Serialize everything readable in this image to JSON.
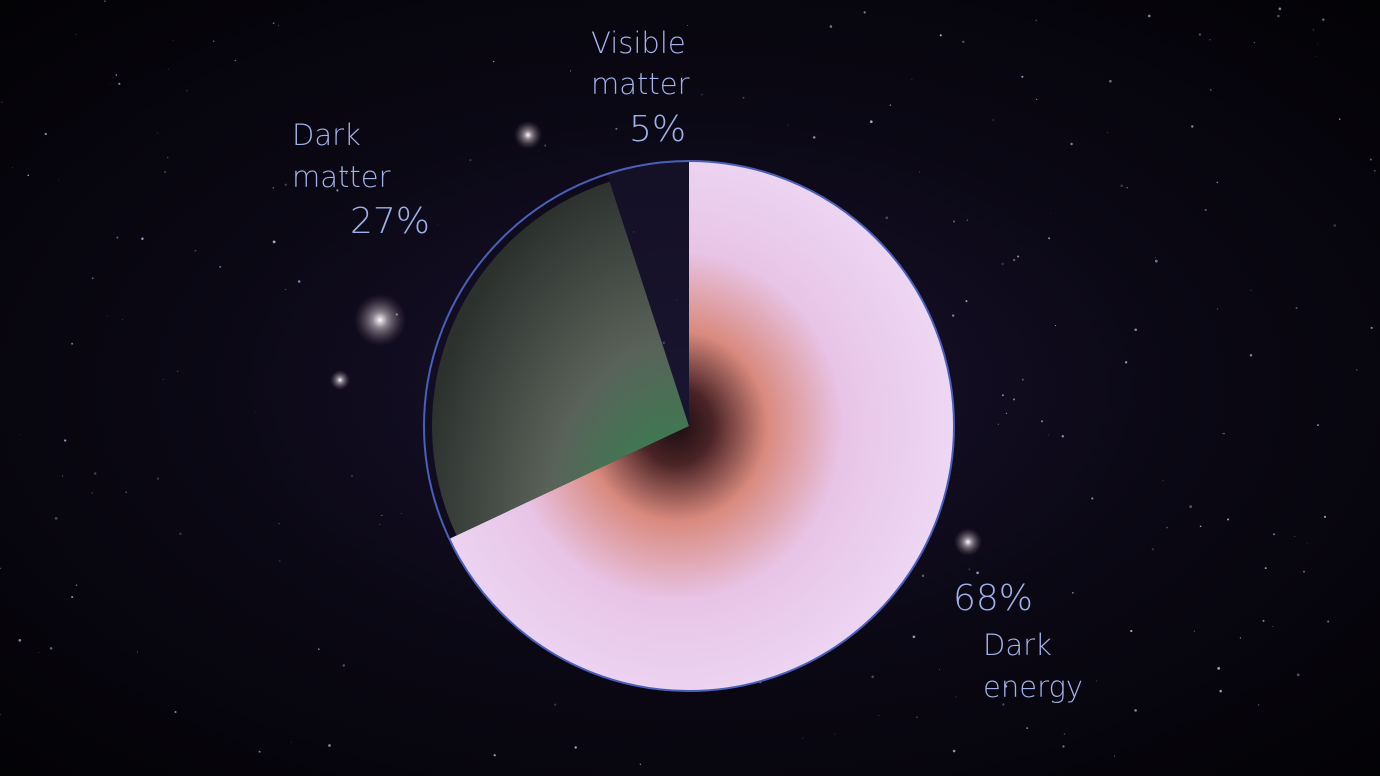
{
  "chart_data": {
    "type": "pie",
    "title": "",
    "start": "top",
    "direction": "clockwise",
    "slices": [
      {
        "name_line1": "Dark",
        "name_line2": "energy",
        "value": 68,
        "label": "68%",
        "color": "#e6cdf0"
      },
      {
        "name_line1": "Dark",
        "name_line2": "matter",
        "value": 27,
        "label": "27%",
        "color": "#4d5a4c"
      },
      {
        "name_line1": "Visible",
        "name_line2": "matter",
        "value": 5,
        "label": "5%",
        "color": "#1a1630"
      }
    ],
    "outline_color": "#4a5fb8",
    "label_color": "#a3b3ea",
    "background": "starfield"
  }
}
